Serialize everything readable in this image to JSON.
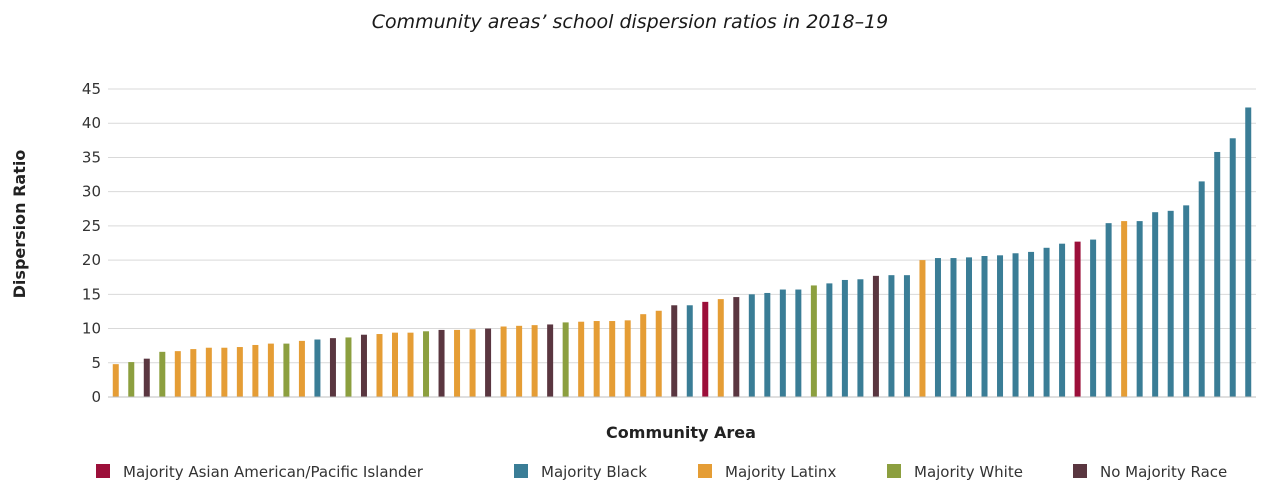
{
  "chart_data": {
    "type": "bar",
    "title": "Community areas’ school dispersion ratios in 2018–19",
    "xlabel": "Community Area",
    "ylabel": "Dispersion Ratio",
    "ylim": [
      0,
      45
    ],
    "yticks": [
      0,
      5,
      10,
      15,
      20,
      25,
      30,
      35,
      40,
      45
    ],
    "grid": true,
    "legend_placement": "bottom",
    "legend": [
      {
        "key": "asian",
        "label": "Majority Asian American/Pacific Islander",
        "color": "#9c0f3a"
      },
      {
        "key": "black",
        "label": "Majority Black",
        "color": "#3a7d96"
      },
      {
        "key": "latinx",
        "label": "Majority Latinx",
        "color": "#e59d35"
      },
      {
        "key": "white",
        "label": "Majority White",
        "color": "#8c9f3f"
      },
      {
        "key": "none",
        "label": "No Majority Race",
        "color": "#5a3640"
      }
    ],
    "bars": [
      {
        "value": 4.8,
        "group": "latinx"
      },
      {
        "value": 5.1,
        "group": "white"
      },
      {
        "value": 5.6,
        "group": "none"
      },
      {
        "value": 6.6,
        "group": "white"
      },
      {
        "value": 6.7,
        "group": "latinx"
      },
      {
        "value": 7.0,
        "group": "latinx"
      },
      {
        "value": 7.2,
        "group": "latinx"
      },
      {
        "value": 7.2,
        "group": "latinx"
      },
      {
        "value": 7.3,
        "group": "latinx"
      },
      {
        "value": 7.6,
        "group": "latinx"
      },
      {
        "value": 7.8,
        "group": "latinx"
      },
      {
        "value": 7.8,
        "group": "white"
      },
      {
        "value": 8.2,
        "group": "latinx"
      },
      {
        "value": 8.4,
        "group": "black"
      },
      {
        "value": 8.6,
        "group": "none"
      },
      {
        "value": 8.7,
        "group": "white"
      },
      {
        "value": 9.1,
        "group": "none"
      },
      {
        "value": 9.2,
        "group": "latinx"
      },
      {
        "value": 9.4,
        "group": "latinx"
      },
      {
        "value": 9.4,
        "group": "latinx"
      },
      {
        "value": 9.6,
        "group": "white"
      },
      {
        "value": 9.8,
        "group": "none"
      },
      {
        "value": 9.8,
        "group": "latinx"
      },
      {
        "value": 9.9,
        "group": "latinx"
      },
      {
        "value": 10.0,
        "group": "none"
      },
      {
        "value": 10.3,
        "group": "latinx"
      },
      {
        "value": 10.4,
        "group": "latinx"
      },
      {
        "value": 10.5,
        "group": "latinx"
      },
      {
        "value": 10.6,
        "group": "none"
      },
      {
        "value": 10.9,
        "group": "white"
      },
      {
        "value": 11.0,
        "group": "latinx"
      },
      {
        "value": 11.1,
        "group": "latinx"
      },
      {
        "value": 11.1,
        "group": "latinx"
      },
      {
        "value": 11.2,
        "group": "latinx"
      },
      {
        "value": 12.1,
        "group": "latinx"
      },
      {
        "value": 12.6,
        "group": "latinx"
      },
      {
        "value": 13.4,
        "group": "none"
      },
      {
        "value": 13.4,
        "group": "black"
      },
      {
        "value": 13.9,
        "group": "asian"
      },
      {
        "value": 14.3,
        "group": "latinx"
      },
      {
        "value": 14.6,
        "group": "none"
      },
      {
        "value": 15.0,
        "group": "black"
      },
      {
        "value": 15.2,
        "group": "black"
      },
      {
        "value": 15.7,
        "group": "black"
      },
      {
        "value": 15.7,
        "group": "black"
      },
      {
        "value": 16.3,
        "group": "white"
      },
      {
        "value": 16.6,
        "group": "black"
      },
      {
        "value": 17.1,
        "group": "black"
      },
      {
        "value": 17.2,
        "group": "black"
      },
      {
        "value": 17.7,
        "group": "none"
      },
      {
        "value": 17.8,
        "group": "black"
      },
      {
        "value": 17.8,
        "group": "black"
      },
      {
        "value": 20.0,
        "group": "latinx"
      },
      {
        "value": 20.3,
        "group": "black"
      },
      {
        "value": 20.3,
        "group": "black"
      },
      {
        "value": 20.4,
        "group": "black"
      },
      {
        "value": 20.6,
        "group": "black"
      },
      {
        "value": 20.7,
        "group": "black"
      },
      {
        "value": 21.0,
        "group": "black"
      },
      {
        "value": 21.2,
        "group": "black"
      },
      {
        "value": 21.8,
        "group": "black"
      },
      {
        "value": 22.4,
        "group": "black"
      },
      {
        "value": 22.7,
        "group": "asian"
      },
      {
        "value": 23.0,
        "group": "black"
      },
      {
        "value": 25.4,
        "group": "black"
      },
      {
        "value": 25.7,
        "group": "latinx"
      },
      {
        "value": 25.7,
        "group": "black"
      },
      {
        "value": 27.0,
        "group": "black"
      },
      {
        "value": 27.2,
        "group": "black"
      },
      {
        "value": 28.0,
        "group": "black"
      },
      {
        "value": 31.5,
        "group": "black"
      },
      {
        "value": 35.8,
        "group": "black"
      },
      {
        "value": 37.8,
        "group": "black"
      },
      {
        "value": 42.3,
        "group": "black"
      }
    ]
  }
}
